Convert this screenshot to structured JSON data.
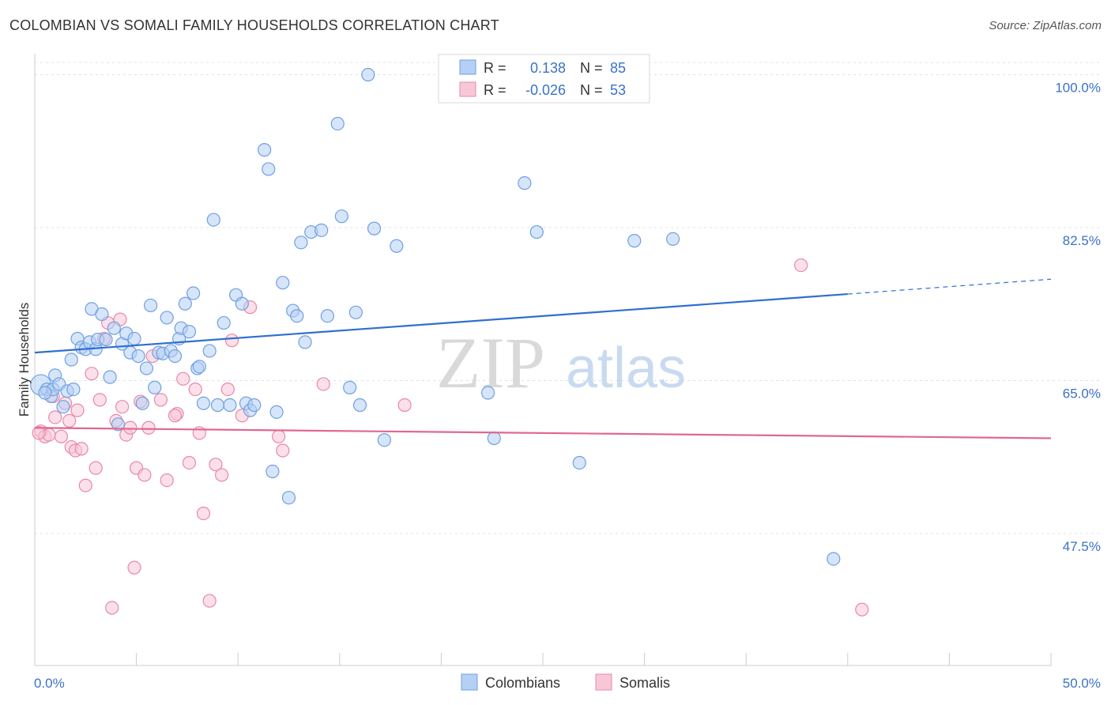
{
  "title": "COLOMBIAN VS SOMALI FAMILY HOUSEHOLDS CORRELATION CHART",
  "source": "Source: ZipAtlas.com",
  "watermark": {
    "zip": "ZIP",
    "atlas": "atlas"
  },
  "colors": {
    "blue": "#6fa0e0",
    "blue_fill": "#b5d0f5",
    "blue_line": "#2f6fd0",
    "pink": "#e888a8",
    "pink_fill": "#f8c7d7",
    "pink_line": "#e06890",
    "tick_text": "#3a72c8",
    "grid": "#e0e0e0"
  },
  "legend": {
    "r_label": "R =",
    "n_label": "N =",
    "rows": [
      {
        "series": "Colombians",
        "r": "0.138",
        "n": "85"
      },
      {
        "series": "Somalis",
        "r": "-0.026",
        "n": "53"
      }
    ]
  },
  "bottom_legend": [
    "Colombians",
    "Somalis"
  ],
  "chart_data": {
    "type": "scatter",
    "xlabel": "",
    "ylabel": "Family Households",
    "xlim": [
      0,
      50
    ],
    "ylim": [
      32.4,
      102.4
    ],
    "x_tick_labels": [
      {
        "value": 0,
        "label": "0.0%"
      },
      {
        "value": 50,
        "label": "50.0%"
      }
    ],
    "x_minor_ticks": [
      5,
      10,
      15,
      20,
      25,
      30,
      35,
      40,
      45,
      50
    ],
    "y_ticks": [
      {
        "value": 100,
        "label": "100.0%"
      },
      {
        "value": 82.5,
        "label": "82.5%"
      },
      {
        "value": 65,
        "label": "65.0%"
      },
      {
        "value": 47.5,
        "label": "47.5%"
      }
    ],
    "series": [
      {
        "name": "Colombians",
        "trend": {
          "x_start": 0,
          "y_start": 68.2,
          "x_solid_end": 40,
          "y_solid_end": 74.9,
          "x_end": 50,
          "y_end": 76.6
        },
        "points": [
          [
            0.3,
            64.5
          ],
          [
            0.6,
            64.0
          ],
          [
            0.8,
            63.2
          ],
          [
            0.9,
            64.0
          ],
          [
            1.0,
            65.6
          ],
          [
            1.2,
            64.6
          ],
          [
            1.4,
            62.0
          ],
          [
            1.6,
            63.8
          ],
          [
            1.8,
            67.4
          ],
          [
            1.9,
            64.0
          ],
          [
            2.1,
            69.8
          ],
          [
            2.3,
            68.8
          ],
          [
            2.5,
            68.6
          ],
          [
            2.7,
            69.4
          ],
          [
            2.8,
            73.2
          ],
          [
            3.0,
            68.6
          ],
          [
            3.1,
            69.7
          ],
          [
            3.3,
            72.6
          ],
          [
            3.5,
            69.7
          ],
          [
            3.7,
            65.4
          ],
          [
            3.9,
            71.0
          ],
          [
            4.1,
            60.0
          ],
          [
            4.3,
            69.2
          ],
          [
            4.5,
            70.4
          ],
          [
            4.7,
            68.2
          ],
          [
            4.9,
            69.8
          ],
          [
            5.1,
            67.8
          ],
          [
            5.3,
            62.4
          ],
          [
            5.5,
            66.4
          ],
          [
            5.7,
            73.6
          ],
          [
            5.9,
            64.2
          ],
          [
            6.1,
            68.2
          ],
          [
            6.3,
            68.1
          ],
          [
            6.5,
            72.2
          ],
          [
            6.7,
            68.4
          ],
          [
            6.9,
            67.8
          ],
          [
            7.1,
            69.8
          ],
          [
            7.2,
            71.0
          ],
          [
            7.4,
            73.8
          ],
          [
            7.6,
            70.6
          ],
          [
            7.8,
            75.0
          ],
          [
            8.0,
            66.4
          ],
          [
            8.1,
            66.6
          ],
          [
            8.3,
            62.4
          ],
          [
            8.6,
            68.4
          ],
          [
            8.8,
            83.4
          ],
          [
            9.0,
            62.2
          ],
          [
            9.3,
            71.6
          ],
          [
            9.6,
            62.2
          ],
          [
            9.9,
            74.8
          ],
          [
            10.2,
            73.8
          ],
          [
            10.4,
            62.4
          ],
          [
            10.6,
            61.6
          ],
          [
            10.8,
            62.2
          ],
          [
            11.3,
            91.4
          ],
          [
            11.5,
            89.2
          ],
          [
            11.7,
            54.6
          ],
          [
            11.9,
            61.4
          ],
          [
            12.2,
            76.2
          ],
          [
            12.5,
            51.6
          ],
          [
            12.7,
            73.0
          ],
          [
            12.9,
            72.4
          ],
          [
            13.1,
            80.8
          ],
          [
            13.3,
            69.4
          ],
          [
            13.6,
            82.0
          ],
          [
            14.1,
            82.2
          ],
          [
            14.4,
            72.4
          ],
          [
            14.9,
            94.4
          ],
          [
            15.1,
            83.8
          ],
          [
            15.5,
            64.2
          ],
          [
            15.8,
            72.8
          ],
          [
            16.0,
            62.2
          ],
          [
            16.4,
            100.0
          ],
          [
            16.7,
            82.4
          ],
          [
            17.2,
            58.2
          ],
          [
            17.8,
            80.4
          ],
          [
            22.3,
            63.6
          ],
          [
            22.6,
            58.4
          ],
          [
            24.1,
            87.6
          ],
          [
            24.7,
            82.0
          ],
          [
            26.8,
            55.6
          ],
          [
            29.5,
            81.0
          ],
          [
            31.4,
            81.2
          ],
          [
            39.3,
            44.6
          ],
          [
            0.5,
            63.6
          ]
        ]
      },
      {
        "name": "Somalis",
        "trend": {
          "x_start": 0,
          "y_start": 59.6,
          "x_end": 50,
          "y_end": 58.4
        },
        "points": [
          [
            0.3,
            59.2
          ],
          [
            0.5,
            58.6
          ],
          [
            0.7,
            58.8
          ],
          [
            0.9,
            63.2
          ],
          [
            1.0,
            60.8
          ],
          [
            1.3,
            58.6
          ],
          [
            1.5,
            62.4
          ],
          [
            1.7,
            60.4
          ],
          [
            1.8,
            57.4
          ],
          [
            2.0,
            57.0
          ],
          [
            2.1,
            61.6
          ],
          [
            2.3,
            57.2
          ],
          [
            2.5,
            53.0
          ],
          [
            2.8,
            65.8
          ],
          [
            3.0,
            55.0
          ],
          [
            3.2,
            62.8
          ],
          [
            3.4,
            69.8
          ],
          [
            3.6,
            71.6
          ],
          [
            3.8,
            39.0
          ],
          [
            4.0,
            60.4
          ],
          [
            4.2,
            72.0
          ],
          [
            4.3,
            62.0
          ],
          [
            4.5,
            58.8
          ],
          [
            4.7,
            59.6
          ],
          [
            4.9,
            43.6
          ],
          [
            5.0,
            55.0
          ],
          [
            5.2,
            62.6
          ],
          [
            5.4,
            54.2
          ],
          [
            5.6,
            59.6
          ],
          [
            5.8,
            67.8
          ],
          [
            6.2,
            62.8
          ],
          [
            6.5,
            53.6
          ],
          [
            7.0,
            61.2
          ],
          [
            7.3,
            65.2
          ],
          [
            7.6,
            55.6
          ],
          [
            7.9,
            64.0
          ],
          [
            8.1,
            59.0
          ],
          [
            8.3,
            49.8
          ],
          [
            8.6,
            39.8
          ],
          [
            8.9,
            55.4
          ],
          [
            9.2,
            54.2
          ],
          [
            9.5,
            64.0
          ],
          [
            9.7,
            69.6
          ],
          [
            10.2,
            61.0
          ],
          [
            10.6,
            73.4
          ],
          [
            12.0,
            58.6
          ],
          [
            12.2,
            57.0
          ],
          [
            14.2,
            64.6
          ],
          [
            18.2,
            62.2
          ],
          [
            37.7,
            78.2
          ],
          [
            40.7,
            38.8
          ],
          [
            0.2,
            59.0
          ],
          [
            6.9,
            61.0
          ]
        ]
      }
    ]
  }
}
